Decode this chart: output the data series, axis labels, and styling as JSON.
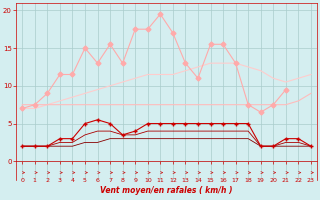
{
  "hours": [
    0,
    1,
    2,
    3,
    4,
    5,
    6,
    7,
    8,
    9,
    10,
    11,
    12,
    13,
    14,
    15,
    16,
    17,
    18,
    19,
    20,
    21,
    22,
    23
  ],
  "wind_gust": [
    7.0,
    7.5,
    9.0,
    11.5,
    11.5,
    15.0,
    13.0,
    15.5,
    13.0,
    17.5,
    17.5,
    19.5,
    17.0,
    13.0,
    11.0,
    15.5,
    15.5,
    13.0,
    7.5,
    6.5,
    7.5,
    9.5,
    null,
    null
  ],
  "wind_avg_increasing": [
    7.0,
    7.0,
    7.5,
    8.0,
    8.5,
    9.0,
    9.5,
    10.0,
    10.5,
    11.0,
    11.5,
    11.5,
    11.5,
    12.0,
    12.5,
    13.0,
    13.0,
    13.0,
    12.5,
    12.0,
    11.0,
    10.5,
    11.0,
    11.5
  ],
  "wind_avg_flat": [
    7.5,
    7.5,
    7.5,
    7.5,
    7.5,
    7.5,
    7.5,
    7.5,
    7.5,
    7.5,
    7.5,
    7.5,
    7.5,
    7.5,
    7.5,
    7.5,
    7.5,
    7.5,
    7.5,
    7.5,
    7.5,
    7.5,
    8.0,
    9.0
  ],
  "wind_max": [
    2.0,
    2.0,
    2.0,
    3.0,
    3.0,
    5.0,
    5.5,
    5.0,
    3.5,
    4.0,
    5.0,
    5.0,
    5.0,
    5.0,
    5.0,
    5.0,
    5.0,
    5.0,
    5.0,
    2.0,
    2.0,
    3.0,
    3.0,
    2.0
  ],
  "wind_min": [
    2.0,
    2.0,
    2.0,
    2.0,
    2.0,
    2.5,
    2.5,
    3.0,
    3.0,
    3.0,
    3.0,
    3.0,
    3.0,
    3.0,
    3.0,
    3.0,
    3.0,
    3.0,
    3.0,
    2.0,
    2.0,
    2.0,
    2.0,
    2.0
  ],
  "wind_mid": [
    2.0,
    2.0,
    2.0,
    2.5,
    2.5,
    3.5,
    4.0,
    4.0,
    3.5,
    3.5,
    4.0,
    4.0,
    4.0,
    4.0,
    4.0,
    4.0,
    4.0,
    4.0,
    4.0,
    2.0,
    2.0,
    2.5,
    2.5,
    2.0
  ],
  "color_gust": "#ffaaaa",
  "color_avg_inc": "#ffcccc",
  "color_avg_flat": "#ffbbbb",
  "color_max": "#cc0000",
  "color_min": "#880000",
  "color_mid": "#aa0000",
  "bg_color": "#d4eef0",
  "grid_color": "#aacccc",
  "xlabel": "Vent moyen/en rafales ( km/h )",
  "ylabel_vals": [
    0,
    5,
    10,
    15,
    20
  ],
  "ylim": [
    -2.5,
    21
  ],
  "xlim": [
    -0.5,
    23.5
  ],
  "tick_color": "#cc0000",
  "label_color": "#cc0000",
  "arrow_color": "#cc2222"
}
